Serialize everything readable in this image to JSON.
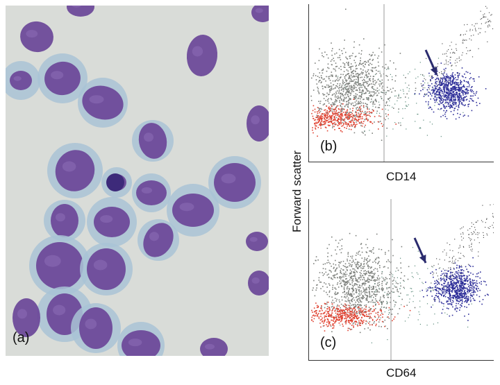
{
  "figure": {
    "panels": [
      {
        "id": "a",
        "label": "(a)",
        "kind": "micrograph"
      },
      {
        "id": "b",
        "label": "(b)",
        "kind": "flow-cytometry",
        "xlabel": "CD14"
      },
      {
        "id": "c",
        "label": "(c)",
        "kind": "flow-cytometry",
        "xlabel": "CD64"
      }
    ],
    "shared_ylabel": "Forward scatter"
  },
  "colors": {
    "monocyte_population": "#2e2f99",
    "grey_population": "#7d807c",
    "red_population": "#e0402f",
    "cell_nucleus": "#6e4a9a",
    "cytoplasm": "#a9c3d6",
    "background": "#d9dcd8"
  }
}
